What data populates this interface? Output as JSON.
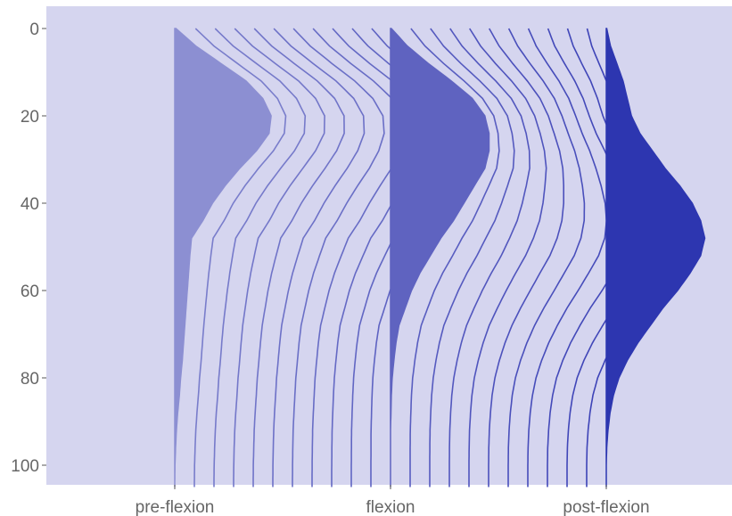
{
  "chart_data": {
    "type": "area",
    "title": "",
    "xlabel": "",
    "ylabel": "",
    "ylim": [
      0,
      105
    ],
    "y_reversed": true,
    "grid": false,
    "legend": "none",
    "categories": [
      "pre-flexion",
      "flexion",
      "post-flexion"
    ],
    "yticks": [
      "0",
      "20",
      "40",
      "60",
      "80",
      "100"
    ],
    "yticks_values": [
      0,
      20,
      40,
      60,
      80,
      100
    ],
    "series": [
      {
        "category": "pre-flexion",
        "color": "#8c8fd2",
        "profile": [
          [
            0,
            0.3
          ],
          [
            4,
            5.0
          ],
          [
            8,
            11.0
          ],
          [
            12,
            17.0
          ],
          [
            16,
            21.0
          ],
          [
            20,
            23.0
          ],
          [
            24,
            22.5
          ],
          [
            28,
            19.5
          ],
          [
            32,
            15.5
          ],
          [
            36,
            12.0
          ],
          [
            40,
            9.0
          ],
          [
            44,
            6.7
          ],
          [
            48,
            4.0
          ],
          [
            52,
            3.6
          ],
          [
            56,
            3.3
          ],
          [
            60,
            3.0
          ],
          [
            64,
            2.7
          ],
          [
            68,
            2.4
          ],
          [
            72,
            2.1
          ],
          [
            76,
            1.8
          ],
          [
            80,
            1.4
          ],
          [
            84,
            1.1
          ],
          [
            88,
            0.7
          ],
          [
            92,
            0.4
          ],
          [
            96,
            0.2
          ],
          [
            100,
            0.05
          ],
          [
            104,
            0
          ]
        ]
      },
      {
        "category": "flexion",
        "color": "#5f63c0",
        "profile": [
          [
            0,
            0.2
          ],
          [
            4,
            4.0
          ],
          [
            8,
            9.0
          ],
          [
            12,
            14.5
          ],
          [
            16,
            19.5
          ],
          [
            20,
            22.5
          ],
          [
            24,
            23.5
          ],
          [
            28,
            23.5
          ],
          [
            32,
            22.5
          ],
          [
            36,
            20.0
          ],
          [
            40,
            17.5
          ],
          [
            44,
            15.0
          ],
          [
            48,
            12.0
          ],
          [
            52,
            9.5
          ],
          [
            56,
            7.0
          ],
          [
            60,
            5.0
          ],
          [
            64,
            3.5
          ],
          [
            68,
            2.0
          ],
          [
            72,
            1.3
          ],
          [
            76,
            0.8
          ],
          [
            80,
            0.4
          ],
          [
            84,
            0.2
          ],
          [
            88,
            0.1
          ],
          [
            92,
            0
          ],
          [
            104,
            0
          ]
        ]
      },
      {
        "category": "post-flexion",
        "color": "#2d36b0",
        "profile": [
          [
            0,
            0.1
          ],
          [
            4,
            1.0
          ],
          [
            8,
            2.5
          ],
          [
            12,
            4.0
          ],
          [
            16,
            5.0
          ],
          [
            20,
            6.0
          ],
          [
            24,
            8.0
          ],
          [
            28,
            11.0
          ],
          [
            32,
            14.0
          ],
          [
            36,
            17.5
          ],
          [
            40,
            20.5
          ],
          [
            44,
            22.5
          ],
          [
            48,
            23.5
          ],
          [
            52,
            22.5
          ],
          [
            56,
            20.0
          ],
          [
            60,
            17.0
          ],
          [
            64,
            13.5
          ],
          [
            68,
            10.5
          ],
          [
            72,
            7.5
          ],
          [
            76,
            5.0
          ],
          [
            80,
            3.0
          ],
          [
            84,
            1.7
          ],
          [
            88,
            0.9
          ],
          [
            92,
            0.4
          ],
          [
            96,
            0.1
          ],
          [
            100,
            0
          ],
          [
            104,
            0
          ]
        ]
      }
    ],
    "interpolation_lines_between": 10
  }
}
